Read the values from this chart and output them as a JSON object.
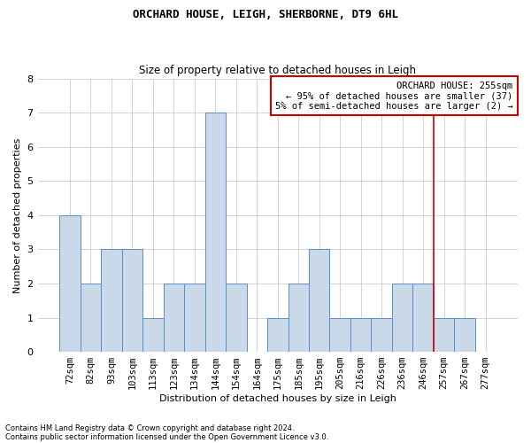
{
  "title": "ORCHARD HOUSE, LEIGH, SHERBORNE, DT9 6HL",
  "subtitle": "Size of property relative to detached houses in Leigh",
  "xlabel": "Distribution of detached houses by size in Leigh",
  "ylabel": "Number of detached properties",
  "categories": [
    "72sqm",
    "82sqm",
    "93sqm",
    "103sqm",
    "113sqm",
    "123sqm",
    "134sqm",
    "144sqm",
    "154sqm",
    "164sqm",
    "175sqm",
    "185sqm",
    "195sqm",
    "205sqm",
    "216sqm",
    "226sqm",
    "236sqm",
    "246sqm",
    "257sqm",
    "267sqm",
    "277sqm"
  ],
  "values": [
    4,
    2,
    3,
    3,
    1,
    2,
    2,
    7,
    2,
    0,
    1,
    2,
    3,
    1,
    1,
    1,
    2,
    2,
    1,
    1,
    0
  ],
  "bar_color": "#c9d9e8",
  "bar_edgecolor": "#5b8fc9",
  "vline_x_index": 18,
  "vline_color": "#cc0000",
  "annotation_title": "ORCHARD HOUSE: 255sqm",
  "annotation_line1": "← 95% of detached houses are smaller (37)",
  "annotation_line2": "5% of semi-detached houses are larger (2) →",
  "annotation_box_color": "#cc0000",
  "ylim": [
    0,
    8
  ],
  "yticks": [
    0,
    1,
    2,
    3,
    4,
    5,
    6,
    7,
    8
  ],
  "footnote1": "Contains HM Land Registry data © Crown copyright and database right 2024.",
  "footnote2": "Contains public sector information licensed under the Open Government Licence v3.0.",
  "background_color": "#ffffff",
  "grid_color": "#cccccc",
  "title_fontsize": 9,
  "subtitle_fontsize": 8.5,
  "ylabel_fontsize": 8,
  "xlabel_fontsize": 8,
  "tick_fontsize": 7.5,
  "annot_fontsize": 7.5,
  "footnote_fontsize": 6
}
